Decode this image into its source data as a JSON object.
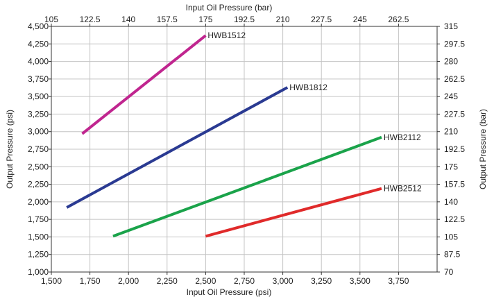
{
  "chart_data": {
    "type": "line",
    "grid": true,
    "x_bottom": {
      "label": "Input Oil Pressure (psi)",
      "range": [
        1500,
        4000
      ],
      "ticks": [
        1500,
        1750,
        2000,
        2250,
        2500,
        2750,
        3000,
        3250,
        3500,
        3750
      ],
      "tick_labels": [
        "1,500",
        "1,750",
        "2,000",
        "2,250",
        "2,500",
        "2,750",
        "3,000",
        "3,250",
        "3,500",
        "3,750"
      ]
    },
    "x_top": {
      "label": "Input Oil Pressure (bar)",
      "ticks": [
        105,
        122.5,
        140,
        157.5,
        175,
        192.5,
        210,
        227.5,
        245,
        262.5
      ],
      "tick_labels": [
        "105",
        "122.5",
        "140",
        "157.5",
        "175",
        "192.5",
        "210",
        "227.5",
        "245",
        "262.5"
      ]
    },
    "y_left": {
      "label": "Output Pressure (psi)",
      "range": [
        1000,
        4500
      ],
      "ticks": [
        1000,
        1250,
        1500,
        1750,
        2000,
        2250,
        2500,
        2750,
        3000,
        3250,
        3500,
        3750,
        4000,
        4250,
        4500
      ],
      "tick_labels": [
        "1,000",
        "1,250",
        "1,500",
        "1,750",
        "2,000",
        "2,250",
        "2,500",
        "2,750",
        "3,000",
        "3,250",
        "3,500",
        "3,750",
        "4,000",
        "4,250",
        "4,500"
      ]
    },
    "y_right": {
      "label": "Output Pressure (bar)",
      "ticks": [
        70,
        87.5,
        105,
        122.5,
        140,
        157.5,
        175,
        192.5,
        210,
        227.5,
        245,
        262.5,
        280,
        297.5,
        315
      ],
      "tick_labels": [
        "70",
        "87.5",
        "105",
        "122.5",
        "140",
        "157.5",
        "175",
        "192.5",
        "210",
        "227.5",
        "245",
        "262.5",
        "280",
        "297.5",
        "315"
      ]
    },
    "series": [
      {
        "name": "HWB1512",
        "color": "#c0258f",
        "x": [
          1700,
          2500
        ],
        "y": [
          2970,
          4370
        ]
      },
      {
        "name": "HWB1812",
        "color": "#2a3a92",
        "x": [
          1600,
          3030
        ],
        "y": [
          1920,
          3630
        ]
      },
      {
        "name": "HWB2112",
        "color": "#1aa34a",
        "x": [
          1900,
          3640
        ],
        "y": [
          1510,
          2920
        ]
      },
      {
        "name": "HWB2512",
        "color": "#e02a2a",
        "x": [
          2500,
          3640
        ],
        "y": [
          1510,
          2190
        ]
      }
    ]
  }
}
